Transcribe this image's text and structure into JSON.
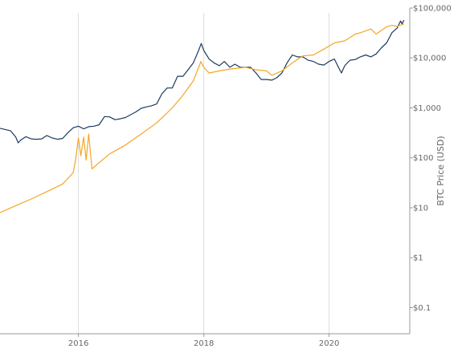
{
  "chart_data": {
    "type": "line",
    "ylabel": "BTC Price (USD)",
    "y_scale": "log",
    "ylim": [
      0.03,
      100000
    ],
    "xlim": [
      "2014-10-01",
      "2021-04-15"
    ],
    "y_ticks": [
      {
        "value": 100000,
        "label": "$100,000"
      },
      {
        "value": 10000,
        "label": "$10,000"
      },
      {
        "value": 1000,
        "label": "$1,000"
      },
      {
        "value": 100,
        "label": "$100"
      },
      {
        "value": 10,
        "label": "$10"
      },
      {
        "value": 1,
        "label": "$1"
      },
      {
        "value": 0.1,
        "label": "$0.1"
      }
    ],
    "x_ticks": [
      {
        "value": "2016-01-01",
        "label": "2016"
      },
      {
        "value": "2018-01-01",
        "label": "2018"
      },
      {
        "value": "2020-01-01",
        "label": "2020"
      }
    ],
    "grid": "vertical",
    "colors": {
      "btc_price": "#1c3a5e",
      "model": "#f5a623",
      "grid": "#dddddd",
      "axis": "#999999"
    },
    "series": [
      {
        "key": "btc_price",
        "color": "#1c3a5e",
        "points": [
          [
            "2014-10-01",
            390
          ],
          [
            "2014-11-01",
            370
          ],
          [
            "2014-12-01",
            350
          ],
          [
            "2015-01-01",
            260
          ],
          [
            "2015-01-15",
            200
          ],
          [
            "2015-02-01",
            230
          ],
          [
            "2015-03-01",
            265
          ],
          [
            "2015-04-01",
            240
          ],
          [
            "2015-05-01",
            235
          ],
          [
            "2015-06-01",
            240
          ],
          [
            "2015-07-01",
            280
          ],
          [
            "2015-08-01",
            250
          ],
          [
            "2015-09-01",
            235
          ],
          [
            "2015-10-01",
            245
          ],
          [
            "2015-11-01",
            320
          ],
          [
            "2015-12-01",
            400
          ],
          [
            "2016-01-01",
            430
          ],
          [
            "2016-02-01",
            380
          ],
          [
            "2016-03-01",
            420
          ],
          [
            "2016-04-01",
            430
          ],
          [
            "2016-05-01",
            460
          ],
          [
            "2016-06-01",
            670
          ],
          [
            "2016-07-01",
            660
          ],
          [
            "2016-08-01",
            580
          ],
          [
            "2016-09-01",
            605
          ],
          [
            "2016-10-01",
            640
          ],
          [
            "2016-11-01",
            730
          ],
          [
            "2016-12-01",
            830
          ],
          [
            "2017-01-01",
            980
          ],
          [
            "2017-02-01",
            1050
          ],
          [
            "2017-03-01",
            1100
          ],
          [
            "2017-04-01",
            1200
          ],
          [
            "2017-05-01",
            1900
          ],
          [
            "2017-06-01",
            2500
          ],
          [
            "2017-07-01",
            2500
          ],
          [
            "2017-08-01",
            4300
          ],
          [
            "2017-09-01",
            4300
          ],
          [
            "2017-10-01",
            5800
          ],
          [
            "2017-11-01",
            8000
          ],
          [
            "2017-12-01",
            14000
          ],
          [
            "2017-12-17",
            19500
          ],
          [
            "2018-01-01",
            14000
          ],
          [
            "2018-02-01",
            9500
          ],
          [
            "2018-03-01",
            8000
          ],
          [
            "2018-04-01",
            7000
          ],
          [
            "2018-05-01",
            8500
          ],
          [
            "2018-06-01",
            6500
          ],
          [
            "2018-07-01",
            7500
          ],
          [
            "2018-08-01",
            6500
          ],
          [
            "2018-09-01",
            6500
          ],
          [
            "2018-10-01",
            6500
          ],
          [
            "2018-11-01",
            5000
          ],
          [
            "2018-12-01",
            3700
          ],
          [
            "2019-01-01",
            3700
          ],
          [
            "2019-02-01",
            3600
          ],
          [
            "2019-03-01",
            4000
          ],
          [
            "2019-04-01",
            5000
          ],
          [
            "2019-05-01",
            8000
          ],
          [
            "2019-06-01",
            11500
          ],
          [
            "2019-07-01",
            10500
          ],
          [
            "2019-08-01",
            10500
          ],
          [
            "2019-09-01",
            9000
          ],
          [
            "2019-10-01",
            8500
          ],
          [
            "2019-11-01",
            7500
          ],
          [
            "2019-12-01",
            7200
          ],
          [
            "2020-01-01",
            8500
          ],
          [
            "2020-02-01",
            9500
          ],
          [
            "2020-03-01",
            6000
          ],
          [
            "2020-03-13",
            5000
          ],
          [
            "2020-04-01",
            7000
          ],
          [
            "2020-05-01",
            9000
          ],
          [
            "2020-06-01",
            9300
          ],
          [
            "2020-07-01",
            10500
          ],
          [
            "2020-08-01",
            11500
          ],
          [
            "2020-09-01",
            10500
          ],
          [
            "2020-10-01",
            12000
          ],
          [
            "2020-11-01",
            16000
          ],
          [
            "2020-12-01",
            20000
          ],
          [
            "2021-01-01",
            32000
          ],
          [
            "2021-02-01",
            40000
          ],
          [
            "2021-02-20",
            55000
          ],
          [
            "2021-03-01",
            48000
          ],
          [
            "2021-03-12",
            57000
          ]
        ]
      },
      {
        "key": "model",
        "color": "#f5a623",
        "points": [
          [
            "2014-10-01",
            8
          ],
          [
            "2015-01-01",
            11
          ],
          [
            "2015-04-01",
            15
          ],
          [
            "2015-07-01",
            21
          ],
          [
            "2015-10-01",
            30
          ],
          [
            "2015-12-01",
            50
          ],
          [
            "2015-12-15",
            90
          ],
          [
            "2016-01-01",
            250
          ],
          [
            "2016-01-15",
            110
          ],
          [
            "2016-02-01",
            260
          ],
          [
            "2016-02-15",
            90
          ],
          [
            "2016-03-01",
            300
          ],
          [
            "2016-03-20",
            60
          ],
          [
            "2016-05-01",
            80
          ],
          [
            "2016-07-01",
            120
          ],
          [
            "2016-10-01",
            180
          ],
          [
            "2017-01-01",
            300
          ],
          [
            "2017-04-01",
            500
          ],
          [
            "2017-07-01",
            1000
          ],
          [
            "2017-09-01",
            1800
          ],
          [
            "2017-11-01",
            3500
          ],
          [
            "2017-12-15",
            8500
          ],
          [
            "2018-01-01",
            6500
          ],
          [
            "2018-02-01",
            5000
          ],
          [
            "2018-04-01",
            5500
          ],
          [
            "2018-06-01",
            6000
          ],
          [
            "2018-09-01",
            6500
          ],
          [
            "2018-11-01",
            5800
          ],
          [
            "2019-01-01",
            5500
          ],
          [
            "2019-02-01",
            4500
          ],
          [
            "2019-04-01",
            5500
          ],
          [
            "2019-06-01",
            8000
          ],
          [
            "2019-08-01",
            11000
          ],
          [
            "2019-10-01",
            11500
          ],
          [
            "2019-12-01",
            15000
          ],
          [
            "2020-02-01",
            20000
          ],
          [
            "2020-04-01",
            22000
          ],
          [
            "2020-06-01",
            30000
          ],
          [
            "2020-07-01",
            32000
          ],
          [
            "2020-09-01",
            38000
          ],
          [
            "2020-10-01",
            30000
          ],
          [
            "2020-12-01",
            42000
          ],
          [
            "2021-01-01",
            45000
          ],
          [
            "2021-02-01",
            43000
          ],
          [
            "2021-03-12",
            48000
          ]
        ]
      }
    ]
  }
}
